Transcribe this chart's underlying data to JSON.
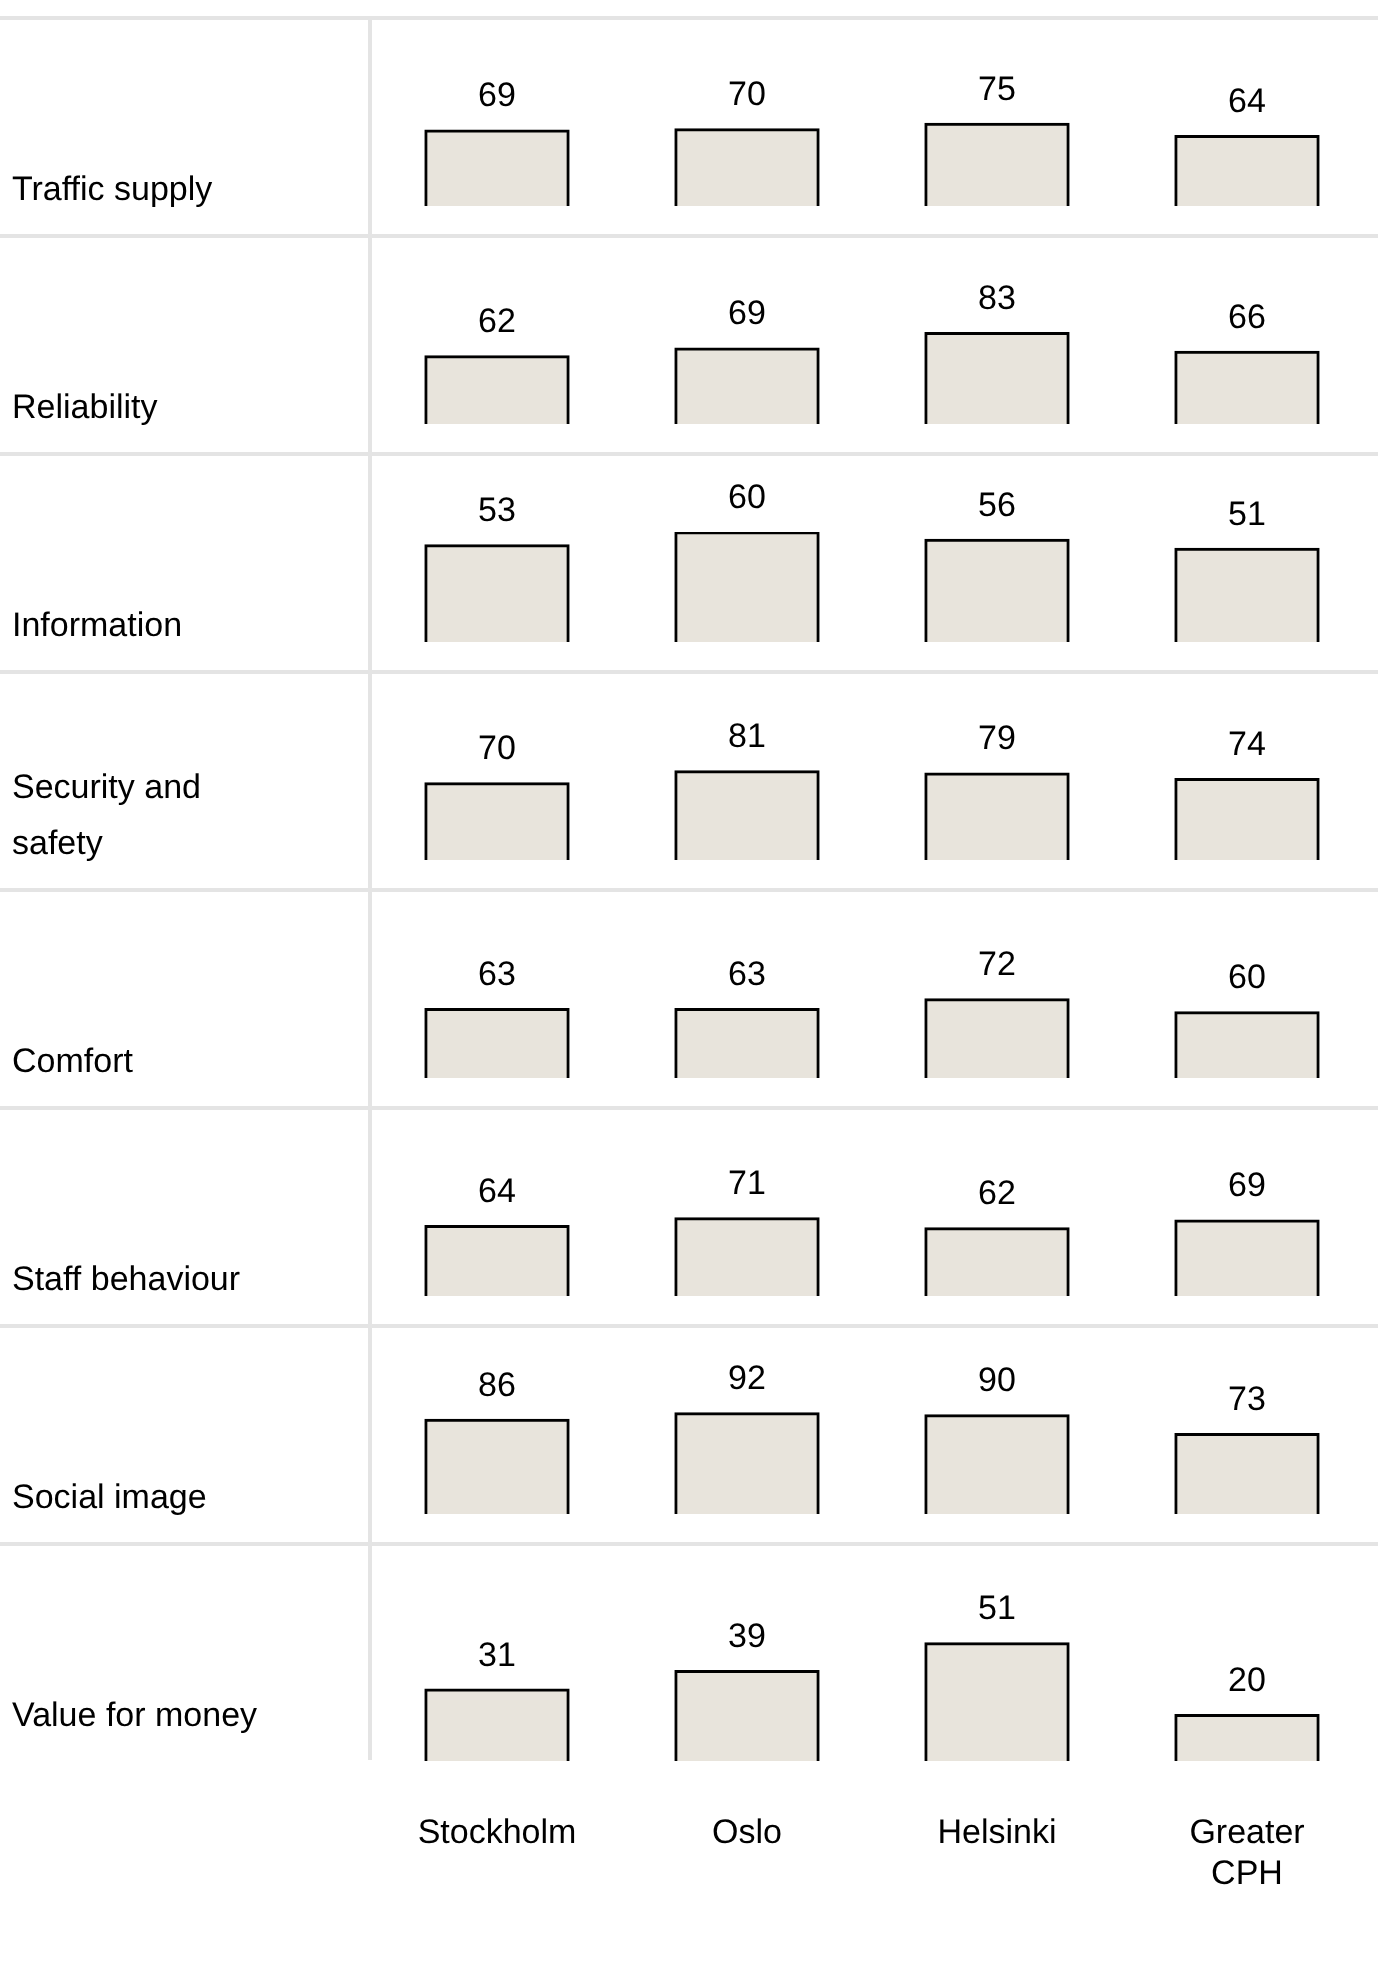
{
  "chart_data": [
    {
      "type": "bar",
      "ylabel": "Traffic supply",
      "categories": [
        null,
        null,
        null,
        null
      ],
      "values": [
        69,
        70,
        75,
        64
      ],
      "color": "#e8e4dc",
      "data_labels": true,
      "tick_labels": false
    },
    {
      "type": "bar",
      "ylabel": "Reliability",
      "categories": [
        null,
        null,
        null,
        null
      ],
      "values": [
        62,
        69,
        83,
        66
      ],
      "color": "#e8e4dc",
      "data_labels": true,
      "tick_labels": false
    },
    {
      "type": "bar",
      "ylabel": "Information",
      "categories": [
        null,
        null,
        null,
        null
      ],
      "values": [
        53,
        60,
        56,
        51
      ],
      "color": "#e8e4dc",
      "data_labels": true,
      "tick_labels": false
    },
    {
      "type": "bar",
      "ylabel": "Security and safety",
      "categories": [
        null,
        null,
        null,
        null
      ],
      "values": [
        70,
        81,
        79,
        74
      ],
      "color": "#e8e4dc",
      "data_labels": true,
      "tick_labels": false
    },
    {
      "type": "bar",
      "ylabel": "Comfort",
      "categories": [
        null,
        null,
        null,
        null
      ],
      "values": [
        63,
        63,
        72,
        60
      ],
      "color": "#e8e4dc",
      "data_labels": true,
      "tick_labels": false
    },
    {
      "type": "bar",
      "ylabel": "Staff behaviour",
      "categories": [
        null,
        null,
        null,
        null
      ],
      "values": [
        64,
        71,
        62,
        69
      ],
      "color": "#e8e4dc",
      "data_labels": true,
      "tick_labels": false
    },
    {
      "type": "bar",
      "ylabel": "Social image",
      "categories": [
        null,
        null,
        null,
        null
      ],
      "values": [
        86,
        92,
        90,
        73
      ],
      "color": "#e8e4dc",
      "data_labels": true,
      "tick_labels": false
    },
    {
      "type": "bar",
      "ylabel": "Value for money",
      "categories": [
        "Stockholm",
        "Oslo",
        "Helsinki",
        "Greater CPH"
      ],
      "values": [
        31,
        39,
        51,
        20
      ],
      "color": "#e8e4dc",
      "data_labels": true,
      "tick_labels": "x"
    }
  ]
}
